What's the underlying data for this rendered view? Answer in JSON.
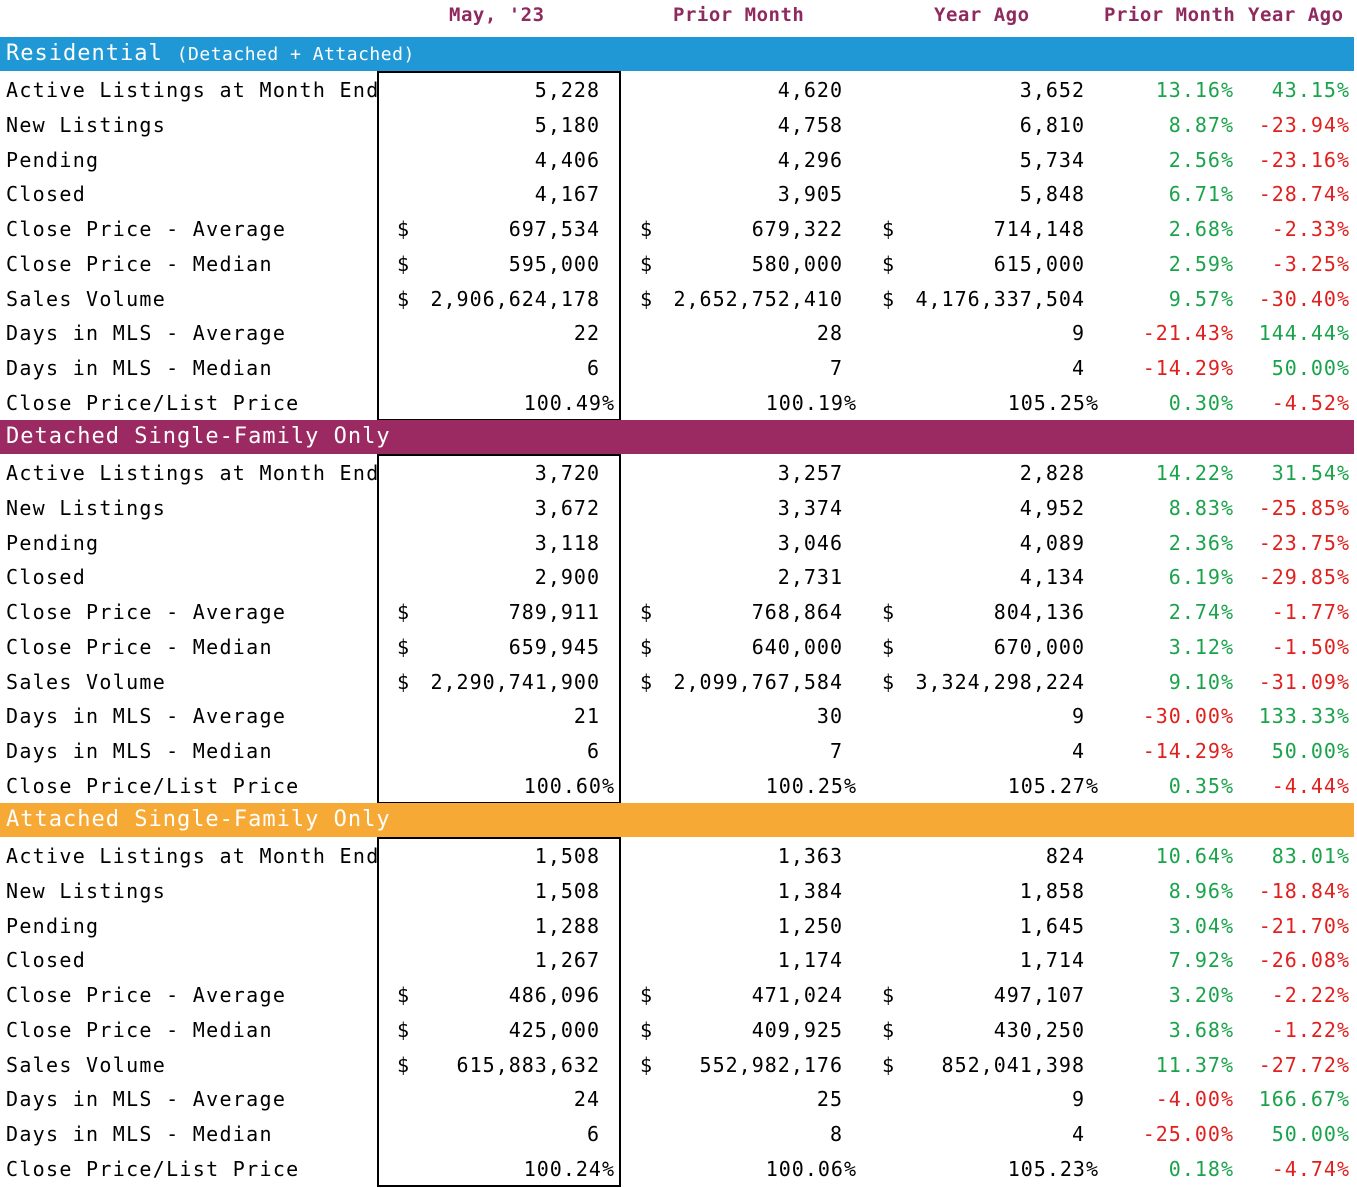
{
  "header": {
    "col_current": "May, '23",
    "col_prior_month": "Prior Month",
    "col_year_ago": "Year Ago",
    "col_pct_prior_month": "Prior Month",
    "col_pct_year_ago": "Year Ago"
  },
  "colors": {
    "residential": "#1f98d5",
    "detached": "#9c2a62",
    "attached": "#f7a935",
    "header_text": "#8e2a5e",
    "positive": "#1aa34a",
    "negative": "#e0201e"
  },
  "sections": [
    {
      "title": "Residential",
      "subtitle": "(Detached + Attached)",
      "rows": [
        {
          "label": "Active Listings at Month End",
          "cur": "5,228",
          "prior": "4,620",
          "year": "3,652",
          "pm": "13.16%",
          "ya": "43.15%",
          "money": false,
          "pct": false
        },
        {
          "label": "New Listings",
          "cur": "5,180",
          "prior": "4,758",
          "year": "6,810",
          "pm": "8.87%",
          "ya": "-23.94%",
          "money": false,
          "pct": false
        },
        {
          "label": "Pending",
          "cur": "4,406",
          "prior": "4,296",
          "year": "5,734",
          "pm": "2.56%",
          "ya": "-23.16%",
          "money": false,
          "pct": false
        },
        {
          "label": "Closed",
          "cur": "4,167",
          "prior": "3,905",
          "year": "5,848",
          "pm": "6.71%",
          "ya": "-28.74%",
          "money": false,
          "pct": false
        },
        {
          "label": "Close Price - Average",
          "cur": "697,534",
          "prior": "679,322",
          "year": "714,148",
          "pm": "2.68%",
          "ya": "-2.33%",
          "money": true,
          "pct": false
        },
        {
          "label": "Close Price - Median",
          "cur": "595,000",
          "prior": "580,000",
          "year": "615,000",
          "pm": "2.59%",
          "ya": "-3.25%",
          "money": true,
          "pct": false
        },
        {
          "label": "Sales Volume",
          "cur": "2,906,624,178",
          "prior": "2,652,752,410",
          "year": "4,176,337,504",
          "pm": "9.57%",
          "ya": "-30.40%",
          "money": true,
          "pct": false
        },
        {
          "label": "Days in MLS - Average",
          "cur": "22",
          "prior": "28",
          "year": "9",
          "pm": "-21.43%",
          "ya": "144.44%",
          "money": false,
          "pct": false
        },
        {
          "label": "Days in MLS - Median",
          "cur": "6",
          "prior": "7",
          "year": "4",
          "pm": "-14.29%",
          "ya": "50.00%",
          "money": false,
          "pct": false
        },
        {
          "label": "Close Price/List Price",
          "cur": "100.49%",
          "prior": "100.19%",
          "year": "105.25%",
          "pm": "0.30%",
          "ya": "-4.52%",
          "money": false,
          "pct": true
        }
      ]
    },
    {
      "title": "Detached Single-Family Only",
      "subtitle": "",
      "rows": [
        {
          "label": "Active Listings at Month End",
          "cur": "3,720",
          "prior": "3,257",
          "year": "2,828",
          "pm": "14.22%",
          "ya": "31.54%",
          "money": false,
          "pct": false
        },
        {
          "label": "New Listings",
          "cur": "3,672",
          "prior": "3,374",
          "year": "4,952",
          "pm": "8.83%",
          "ya": "-25.85%",
          "money": false,
          "pct": false
        },
        {
          "label": "Pending",
          "cur": "3,118",
          "prior": "3,046",
          "year": "4,089",
          "pm": "2.36%",
          "ya": "-23.75%",
          "money": false,
          "pct": false
        },
        {
          "label": "Closed",
          "cur": "2,900",
          "prior": "2,731",
          "year": "4,134",
          "pm": "6.19%",
          "ya": "-29.85%",
          "money": false,
          "pct": false
        },
        {
          "label": "Close Price - Average",
          "cur": "789,911",
          "prior": "768,864",
          "year": "804,136",
          "pm": "2.74%",
          "ya": "-1.77%",
          "money": true,
          "pct": false
        },
        {
          "label": "Close Price - Median",
          "cur": "659,945",
          "prior": "640,000",
          "year": "670,000",
          "pm": "3.12%",
          "ya": "-1.50%",
          "money": true,
          "pct": false
        },
        {
          "label": "Sales Volume",
          "cur": "2,290,741,900",
          "prior": "2,099,767,584",
          "year": "3,324,298,224",
          "pm": "9.10%",
          "ya": "-31.09%",
          "money": true,
          "pct": false
        },
        {
          "label": "Days in MLS - Average",
          "cur": "21",
          "prior": "30",
          "year": "9",
          "pm": "-30.00%",
          "ya": "133.33%",
          "money": false,
          "pct": false
        },
        {
          "label": "Days in MLS - Median",
          "cur": "6",
          "prior": "7",
          "year": "4",
          "pm": "-14.29%",
          "ya": "50.00%",
          "money": false,
          "pct": false
        },
        {
          "label": "Close Price/List Price",
          "cur": "100.60%",
          "prior": "100.25%",
          "year": "105.27%",
          "pm": "0.35%",
          "ya": "-4.44%",
          "money": false,
          "pct": true
        }
      ]
    },
    {
      "title": "Attached Single-Family Only",
      "subtitle": "",
      "rows": [
        {
          "label": "Active Listings at Month End",
          "cur": "1,508",
          "prior": "1,363",
          "year": "824",
          "pm": "10.64%",
          "ya": "83.01%",
          "money": false,
          "pct": false
        },
        {
          "label": "New Listings",
          "cur": "1,508",
          "prior": "1,384",
          "year": "1,858",
          "pm": "8.96%",
          "ya": "-18.84%",
          "money": false,
          "pct": false
        },
        {
          "label": "Pending",
          "cur": "1,288",
          "prior": "1,250",
          "year": "1,645",
          "pm": "3.04%",
          "ya": "-21.70%",
          "money": false,
          "pct": false
        },
        {
          "label": "Closed",
          "cur": "1,267",
          "prior": "1,174",
          "year": "1,714",
          "pm": "7.92%",
          "ya": "-26.08%",
          "money": false,
          "pct": false
        },
        {
          "label": "Close Price - Average",
          "cur": "486,096",
          "prior": "471,024",
          "year": "497,107",
          "pm": "3.20%",
          "ya": "-2.22%",
          "money": true,
          "pct": false
        },
        {
          "label": "Close Price - Median",
          "cur": "425,000",
          "prior": "409,925",
          "year": "430,250",
          "pm": "3.68%",
          "ya": "-1.22%",
          "money": true,
          "pct": false
        },
        {
          "label": "Sales Volume",
          "cur": "615,883,632",
          "prior": "552,982,176",
          "year": "852,041,398",
          "pm": "11.37%",
          "ya": "-27.72%",
          "money": true,
          "pct": false
        },
        {
          "label": "Days in MLS - Average",
          "cur": "24",
          "prior": "25",
          "year": "9",
          "pm": "-4.00%",
          "ya": "166.67%",
          "money": false,
          "pct": false
        },
        {
          "label": "Days in MLS - Median",
          "cur": "6",
          "prior": "8",
          "year": "4",
          "pm": "-25.00%",
          "ya": "50.00%",
          "money": false,
          "pct": false
        },
        {
          "label": "Close Price/List Price",
          "cur": "100.24%",
          "prior": "100.06%",
          "year": "105.23%",
          "pm": "0.18%",
          "ya": "-4.74%",
          "money": false,
          "pct": true
        }
      ]
    }
  ],
  "currency_symbol": "$"
}
